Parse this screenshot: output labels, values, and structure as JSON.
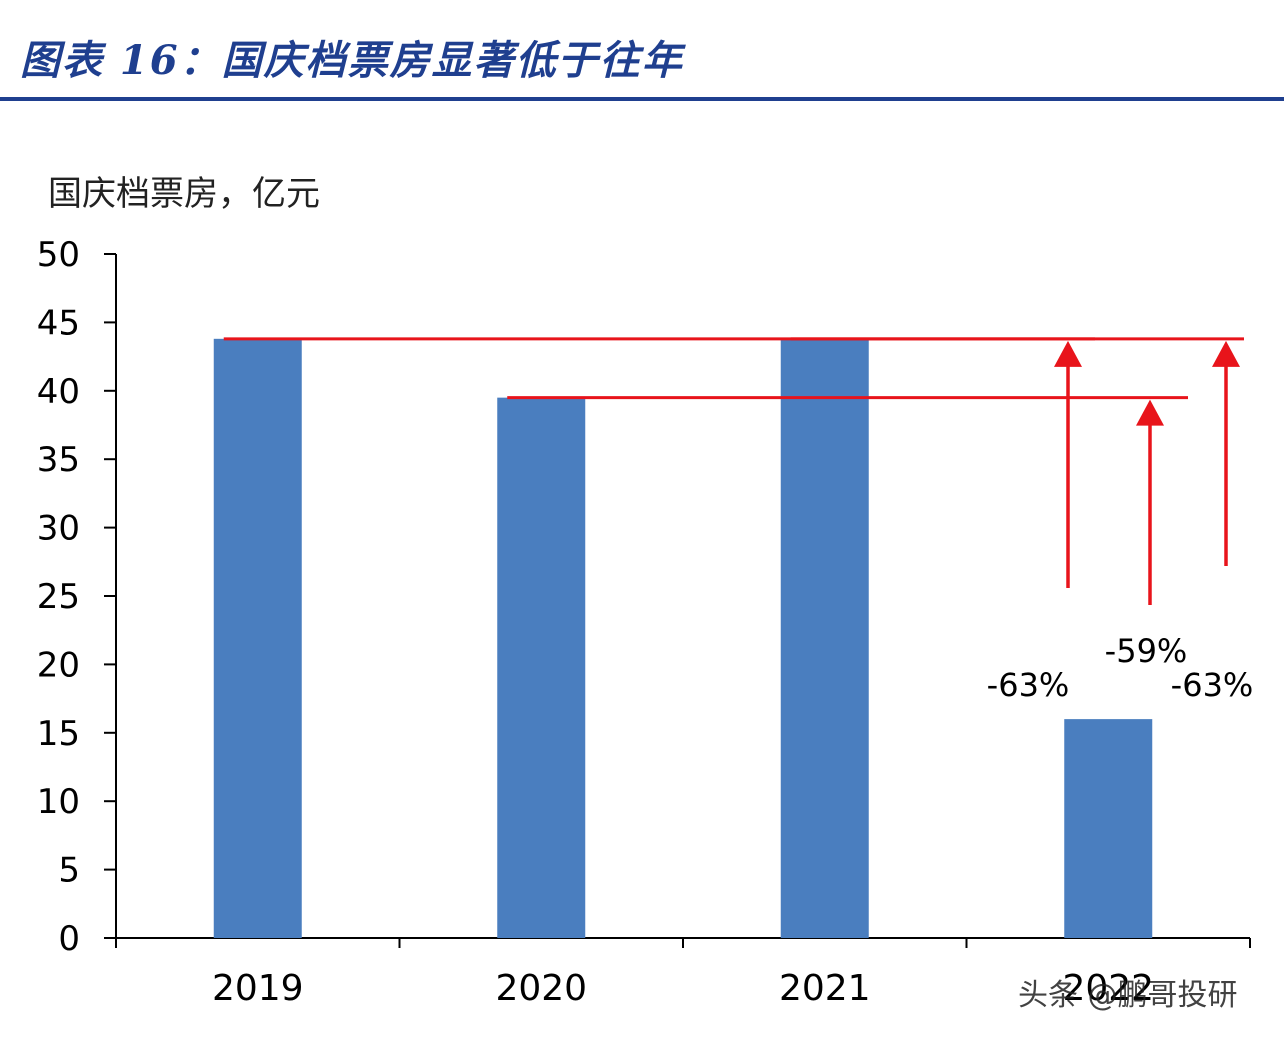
{
  "header": {
    "title": "图表 16：国庆档票房显著低于往年"
  },
  "watermark": "头条 @鹏哥投研",
  "colors": {
    "bar": "#4a7ebf",
    "annotation": "#e8141b",
    "title": "#1f3f8f",
    "axis": "#000000"
  },
  "chart_data": {
    "type": "bar",
    "title": "",
    "ylabel": "国庆档票房，亿元",
    "xlabel": "",
    "ylim": [
      0,
      50
    ],
    "yticks": [
      0,
      5,
      10,
      15,
      20,
      25,
      30,
      35,
      40,
      45,
      50
    ],
    "categories": [
      "2019",
      "2020",
      "2021",
      "2022"
    ],
    "values": [
      43.8,
      39.5,
      43.8,
      16.0
    ],
    "grid": false,
    "legend": "none",
    "annotations": [
      {
        "text": "-63%",
        "from": "2022",
        "to": "2019"
      },
      {
        "text": "-59%",
        "from": "2022",
        "to": "2020"
      },
      {
        "text": "-63%",
        "from": "2022",
        "to": "2021"
      }
    ]
  }
}
